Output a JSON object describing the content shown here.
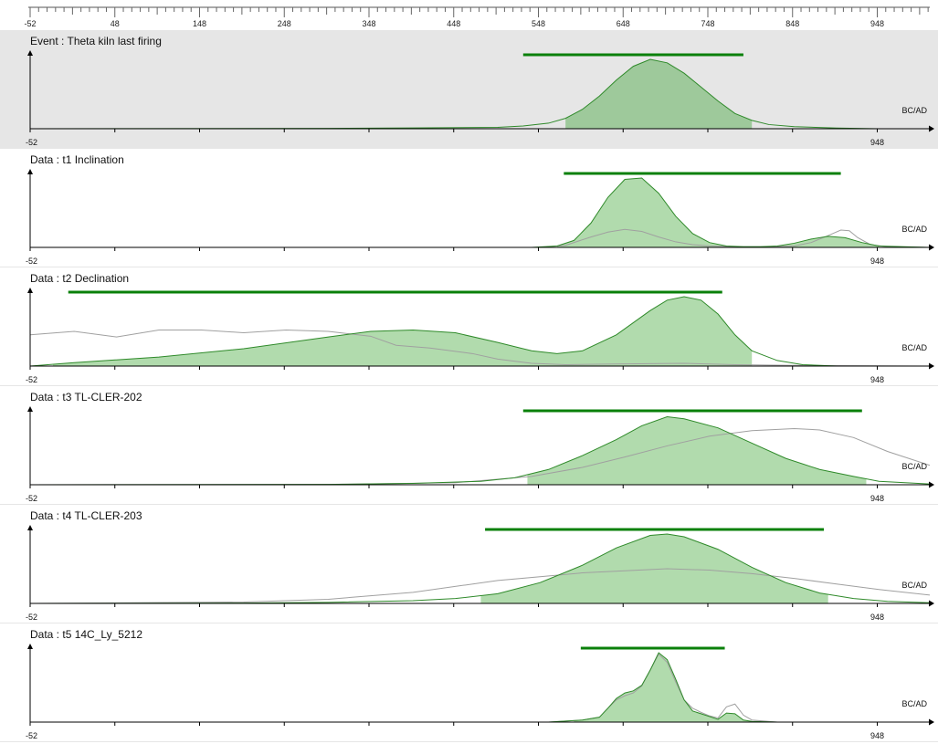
{
  "colors": {
    "density_fill": "#b1dbad",
    "event_fill": "#9ec99b",
    "density_stroke": "#2f8a2a",
    "raw_stroke": "#a0a0a0",
    "hpd_bar": "#0a800a",
    "axis": "#000000",
    "event_bg": "#e6e6e6"
  },
  "ruler": {
    "tick_labels": [
      "-52",
      "48",
      "148",
      "248",
      "348",
      "448",
      "548",
      "648",
      "748",
      "848",
      "948"
    ]
  },
  "chart_data": [
    {
      "type": "area",
      "kind": "event",
      "title_prefix": "Event : ",
      "name": "Theta kiln last firing",
      "x_unit": "BC/AD",
      "xlim": [
        -52,
        1010
      ],
      "x_start_label": "-52",
      "x_end_label": "948",
      "hpd": [
        530,
        790
      ],
      "density_region": [
        580,
        800
      ],
      "density": {
        "x": [
          -52,
          300,
          400,
          500,
          530,
          560,
          580,
          600,
          620,
          640,
          660,
          680,
          700,
          720,
          740,
          760,
          780,
          800,
          820,
          850,
          900,
          948,
          1010
        ],
        "y": [
          0,
          0.005,
          0.012,
          0.02,
          0.04,
          0.08,
          0.15,
          0.28,
          0.47,
          0.7,
          0.9,
          1.0,
          0.95,
          0.8,
          0.6,
          0.4,
          0.22,
          0.12,
          0.06,
          0.03,
          0.01,
          0,
          0
        ]
      },
      "raw": null
    },
    {
      "type": "area",
      "kind": "data",
      "title_prefix": "Data : ",
      "name": "t1 Inclination",
      "x_unit": "BC/AD",
      "xlim": [
        -52,
        1010
      ],
      "x_start_label": "-52",
      "x_end_label": "948",
      "hpd": [
        578,
        905
      ],
      "density_region": [
        570,
        950
      ],
      "density": {
        "x": [
          -52,
          540,
          570,
          590,
          610,
          630,
          650,
          670,
          690,
          710,
          730,
          750,
          770,
          790,
          810,
          830,
          850,
          870,
          890,
          910,
          930,
          950,
          1010
        ],
        "y": [
          0,
          0,
          0.02,
          0.1,
          0.35,
          0.72,
          0.98,
          1.0,
          0.78,
          0.45,
          0.2,
          0.07,
          0.02,
          0.01,
          0.01,
          0.02,
          0.06,
          0.12,
          0.16,
          0.14,
          0.07,
          0.02,
          0
        ]
      },
      "raw": {
        "x": [
          -52,
          550,
          580,
          610,
          630,
          650,
          670,
          690,
          710,
          730,
          750,
          780,
          820,
          850,
          870,
          890,
          905,
          915,
          925,
          940,
          960,
          1010
        ],
        "y": [
          0,
          0,
          0.03,
          0.15,
          0.22,
          0.26,
          0.23,
          0.15,
          0.08,
          0.04,
          0.02,
          0.01,
          0.01,
          0.02,
          0.07,
          0.17,
          0.25,
          0.24,
          0.14,
          0.04,
          0.01,
          0
        ]
      }
    },
    {
      "type": "area",
      "kind": "data",
      "title_prefix": "Data : ",
      "name": "t2 Declination",
      "x_unit": "BC/AD",
      "xlim": [
        -52,
        1010
      ],
      "x_start_label": "-52",
      "x_end_label": "948",
      "hpd": [
        -7,
        765
      ],
      "density_region": [
        -25,
        800
      ],
      "density": {
        "x": [
          -52,
          0,
          100,
          200,
          300,
          350,
          400,
          450,
          500,
          540,
          570,
          600,
          640,
          680,
          700,
          720,
          740,
          760,
          780,
          800,
          830,
          860,
          900,
          1010
        ],
        "y": [
          0,
          0.05,
          0.13,
          0.25,
          0.42,
          0.5,
          0.52,
          0.48,
          0.34,
          0.22,
          0.18,
          0.22,
          0.45,
          0.8,
          0.95,
          1.0,
          0.95,
          0.75,
          0.45,
          0.22,
          0.08,
          0.02,
          0,
          0
        ]
      },
      "raw": {
        "x": [
          -52,
          0,
          50,
          100,
          150,
          200,
          250,
          300,
          350,
          380,
          420,
          470,
          500,
          540,
          580,
          640,
          720,
          780,
          850,
          1010
        ],
        "y": [
          0.45,
          0.5,
          0.42,
          0.52,
          0.52,
          0.48,
          0.52,
          0.5,
          0.43,
          0.3,
          0.26,
          0.18,
          0.1,
          0.04,
          0.02,
          0.03,
          0.04,
          0.02,
          0.01,
          0
        ]
      }
    },
    {
      "type": "area",
      "kind": "data",
      "title_prefix": "Data : ",
      "name": "t3 TL-CLER-202",
      "x_unit": "BC/AD",
      "xlim": [
        -52,
        1010
      ],
      "x_start_label": "-52",
      "x_end_label": "948",
      "hpd": [
        530,
        930
      ],
      "density_region": [
        535,
        935
      ],
      "density": {
        "x": [
          -52,
          300,
          400,
          480,
          520,
          560,
          600,
          640,
          670,
          700,
          720,
          760,
          800,
          840,
          880,
          920,
          950,
          1010
        ],
        "y": [
          0,
          0.005,
          0.02,
          0.05,
          0.1,
          0.22,
          0.42,
          0.65,
          0.85,
          0.98,
          0.95,
          0.82,
          0.6,
          0.38,
          0.22,
          0.12,
          0.05,
          0.01
        ]
      },
      "raw": {
        "x": [
          -52,
          300,
          450,
          540,
          600,
          650,
          700,
          750,
          800,
          850,
          880,
          920,
          960,
          1010
        ],
        "y": [
          0,
          0.005,
          0.03,
          0.12,
          0.25,
          0.4,
          0.56,
          0.7,
          0.78,
          0.81,
          0.79,
          0.68,
          0.48,
          0.28
        ]
      }
    },
    {
      "type": "area",
      "kind": "data",
      "title_prefix": "Data : ",
      "name": "t4 TL-CLER-203",
      "x_unit": "BC/AD",
      "xlim": [
        -52,
        1010
      ],
      "x_start_label": "-52",
      "x_end_label": "948",
      "hpd": [
        485,
        885
      ],
      "density_region": [
        480,
        890
      ],
      "density": {
        "x": [
          -52,
          200,
          300,
          400,
          450,
          500,
          550,
          600,
          640,
          680,
          700,
          720,
          760,
          800,
          840,
          880,
          920,
          960,
          1010
        ],
        "y": [
          0,
          0.005,
          0.015,
          0.04,
          0.07,
          0.14,
          0.3,
          0.55,
          0.8,
          0.98,
          1.0,
          0.96,
          0.78,
          0.52,
          0.3,
          0.15,
          0.07,
          0.03,
          0.01
        ]
      },
      "raw": {
        "x": [
          -52,
          200,
          300,
          400,
          500,
          600,
          650,
          700,
          750,
          800,
          850,
          900,
          950,
          1010
        ],
        "y": [
          0,
          0.02,
          0.06,
          0.16,
          0.33,
          0.44,
          0.47,
          0.5,
          0.48,
          0.43,
          0.36,
          0.28,
          0.2,
          0.12
        ]
      }
    },
    {
      "type": "area",
      "kind": "data",
      "title_prefix": "Data : ",
      "name": "t5 14C_Ly_5212",
      "x_unit": "BC/AD",
      "xlim": [
        -52,
        1010
      ],
      "x_start_label": "-52",
      "x_end_label": "948",
      "hpd": [
        598,
        768
      ],
      "density_region": [
        590,
        800
      ],
      "density": {
        "x": [
          -52,
          560,
          600,
          620,
          630,
          640,
          650,
          660,
          670,
          680,
          690,
          700,
          710,
          720,
          730,
          740,
          750,
          760,
          770,
          780,
          790,
          800,
          830,
          1010
        ],
        "y": [
          0,
          0,
          0.03,
          0.07,
          0.2,
          0.34,
          0.42,
          0.45,
          0.53,
          0.75,
          1.0,
          0.9,
          0.62,
          0.32,
          0.16,
          0.12,
          0.08,
          0.04,
          0.13,
          0.12,
          0.03,
          0.01,
          0,
          0
        ]
      },
      "raw": {
        "x": [
          -52,
          560,
          600,
          620,
          630,
          640,
          650,
          660,
          670,
          680,
          690,
          700,
          710,
          720,
          730,
          740,
          750,
          760,
          770,
          780,
          790,
          800,
          830,
          1010
        ],
        "y": [
          0,
          0,
          0.03,
          0.07,
          0.2,
          0.32,
          0.38,
          0.42,
          0.52,
          0.75,
          0.98,
          0.86,
          0.58,
          0.32,
          0.2,
          0.14,
          0.09,
          0.06,
          0.22,
          0.26,
          0.1,
          0.03,
          0,
          0
        ]
      }
    }
  ]
}
